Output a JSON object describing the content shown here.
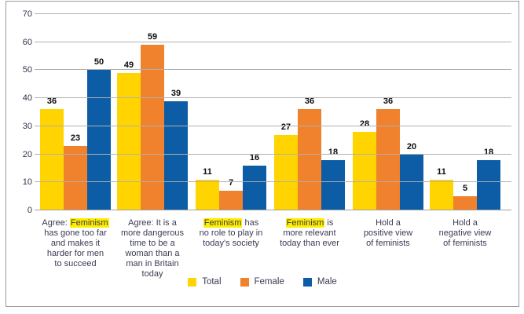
{
  "chart_data": {
    "type": "bar",
    "title": "",
    "xlabel": "",
    "ylabel": "",
    "ylim": [
      0,
      70
    ],
    "yticks": [
      0,
      10,
      20,
      30,
      40,
      50,
      60,
      70
    ],
    "grid": true,
    "legend_position": "bottom-center",
    "highlight_color": "#ffee00",
    "categories": [
      {
        "lines": [
          "Agree: [[Feminism]]",
          "has gone too far",
          "and makes it",
          "harder for men",
          "to succeed"
        ]
      },
      {
        "lines": [
          "Agree: It is a",
          "more dangerous",
          "time to be a",
          "woman than a",
          "man in Britain",
          "today"
        ]
      },
      {
        "lines": [
          "[[Feminism]] has",
          "no role to play in",
          "today's society"
        ]
      },
      {
        "lines": [
          "[[Feminism]] is",
          "more relevant",
          "today than ever"
        ]
      },
      {
        "lines": [
          "Hold a",
          "positive view",
          "of feminists"
        ]
      },
      {
        "lines": [
          "Hold a",
          "negative view",
          "of feminists"
        ]
      }
    ],
    "series": [
      {
        "name": "Total",
        "color": "#ffd400",
        "values": [
          36,
          49,
          11,
          27,
          28,
          11
        ]
      },
      {
        "name": "Female",
        "color": "#f0812d",
        "values": [
          23,
          59,
          7,
          36,
          36,
          5
        ]
      },
      {
        "name": "Male",
        "color": "#0c5da5",
        "values": [
          50,
          39,
          16,
          18,
          20,
          18
        ]
      }
    ]
  }
}
